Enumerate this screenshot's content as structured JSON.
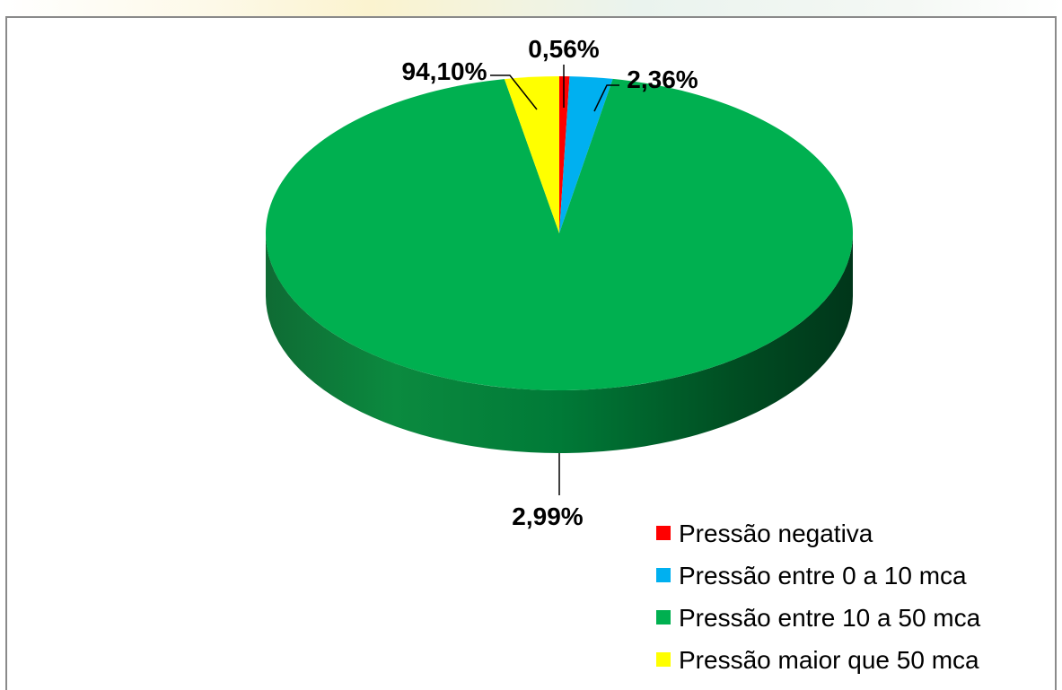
{
  "chart_data": {
    "type": "pie",
    "style": "3d",
    "title": "",
    "slices": [
      {
        "label": "Pressão negativa",
        "value": 0.56,
        "display": "0,56%",
        "color": "#ff0000"
      },
      {
        "label": "Pressão entre 0 a 10 mca",
        "value": 2.36,
        "display": "2,36%",
        "color": "#00b0f0"
      },
      {
        "label": "Pressão entre 10 a 50 mca",
        "value": 94.1,
        "display": "94,10%",
        "color": "#00b050"
      },
      {
        "label": "Pressão maior que 50 mca",
        "value": 2.99,
        "display": "2,99%",
        "color": "#ffff00"
      }
    ],
    "legend_position": "bottom-right"
  }
}
